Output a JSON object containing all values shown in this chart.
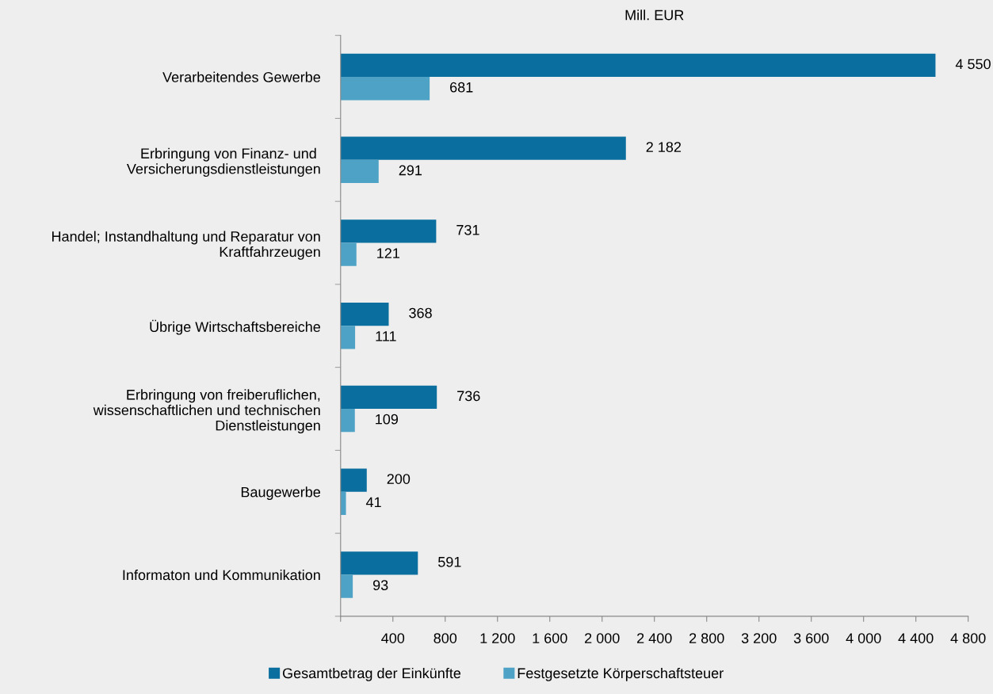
{
  "chart_data": {
    "type": "bar",
    "orientation": "horizontal",
    "title": "Mill. EUR",
    "categories": [
      "Verarbeitendes Gewerbe",
      "Erbringung von Finanz- und \nVersicherungsdienstleistungen",
      "Handel; Instandhaltung und Reparatur von\nKraftfahrzeugen",
      "Übrige Wirtschaftsbereiche",
      "Erbringung von freiberuflichen,\nwissenschaftlichen und technischen\nDienstleistungen",
      "Baugewerbe",
      "Informaton und Kommunikation"
    ],
    "series": [
      {
        "name": "Gesamtbetrag der Einkünfte",
        "color": "#0a6e9e",
        "values": [
          4550,
          2182,
          731,
          368,
          736,
          200,
          591
        ],
        "value_labels": [
          "4 550",
          "2 182",
          "731",
          "368",
          "736",
          "200",
          "591"
        ]
      },
      {
        "name": "Festgesetzte Körperschaftsteuer",
        "color": "#4da2c6",
        "values": [
          681,
          291,
          121,
          111,
          109,
          41,
          93
        ],
        "value_labels": [
          "681",
          "291",
          "121",
          "111",
          "109",
          "41",
          "93"
        ]
      }
    ],
    "xlim": [
      0,
      4800
    ],
    "xticks": [
      {
        "value": 0,
        "label": null
      },
      400,
      800,
      {
        "value": 1200,
        "label": "1 200"
      },
      {
        "value": 1600,
        "label": "1 600"
      },
      {
        "value": 2000,
        "label": "2 000"
      },
      {
        "value": 2400,
        "label": "2 400"
      },
      {
        "value": 2800,
        "label": "2 800"
      },
      {
        "value": 3200,
        "label": "3 200"
      },
      {
        "value": 3600,
        "label": "3 600"
      },
      {
        "value": 4000,
        "label": "4 000"
      },
      {
        "value": 4400,
        "label": "4 400"
      },
      {
        "value": 4800,
        "label": "4 800"
      }
    ],
    "grid": false,
    "legend": "bottom"
  }
}
